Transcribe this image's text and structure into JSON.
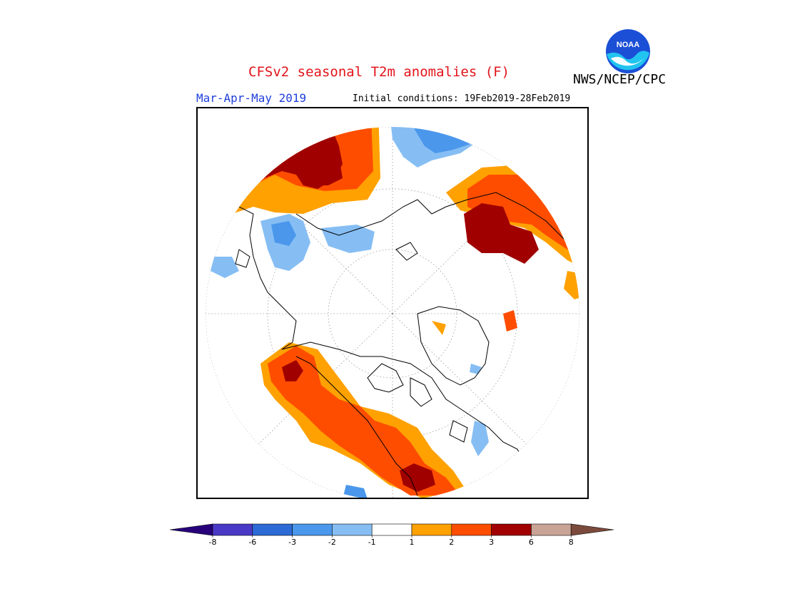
{
  "title": "CFSv2 seasonal T2m anomalies (F)",
  "agency": "NWS/NCEP/CPC",
  "logo_text": "NOAA",
  "season": "Mar-Apr-May 2019",
  "initial_conditions": "Initial conditions: 19Feb2019-28Feb2019",
  "colors": {
    "title": "#e2141b",
    "season": "#1f3fdc",
    "noaa_blue": "#1b4fd6",
    "noaa_cyan": "#21c4f0"
  },
  "colorbar": {
    "labels": [
      "-8",
      "-6",
      "-3",
      "-2",
      "-1",
      "1",
      "2",
      "3",
      "6",
      "8"
    ],
    "colors": [
      "#27007a",
      "#4a39c6",
      "#2c6bd6",
      "#4a97ec",
      "#86bef4",
      "#ffffff",
      "#ffa100",
      "#ff4d00",
      "#a00000",
      "#c8a396",
      "#7b4a3c"
    ]
  }
}
